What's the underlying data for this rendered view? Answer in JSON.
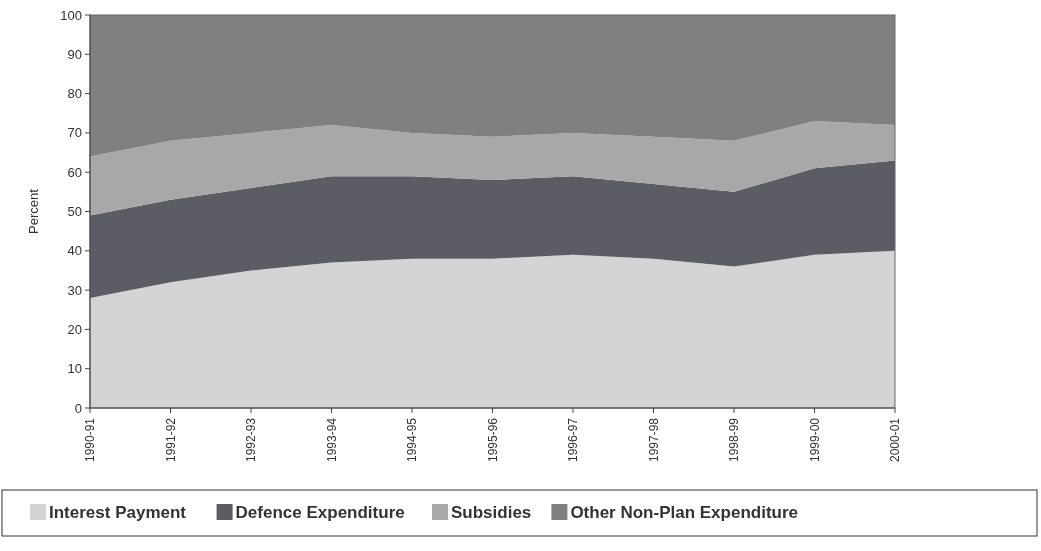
{
  "chart_data": {
    "type": "area",
    "stacked": true,
    "ylabel": "Percent",
    "categories": [
      "1990-91",
      "1991-92",
      "1992-93",
      "1993-94",
      "1994-95",
      "1995-96",
      "1996-97",
      "1997-98",
      "1998-99",
      "1999-00",
      "2000-01"
    ],
    "series": [
      {
        "name": "Interest Payment",
        "color": "#d4d4d4",
        "values": [
          28,
          32,
          35,
          37,
          38,
          38,
          39,
          38,
          36,
          39,
          40
        ]
      },
      {
        "name": "Defence Expenditure",
        "color": "#5c5c64",
        "values": [
          21,
          21,
          21,
          22,
          21,
          20,
          20,
          19,
          19,
          22,
          23
        ]
      },
      {
        "name": "Subsidies",
        "color": "#a8a8a8",
        "values": [
          15,
          15,
          14,
          13,
          11,
          11,
          11,
          12,
          13,
          12,
          9
        ]
      },
      {
        "name": "Other Non-Plan Expenditure",
        "color": "#808080",
        "values": [
          36,
          32,
          30,
          28,
          30,
          31,
          30,
          31,
          32,
          27,
          28
        ]
      }
    ],
    "ylim": [
      0,
      100
    ],
    "yticks": [
      0,
      10,
      20,
      30,
      40,
      50,
      60,
      70,
      80,
      90,
      100
    ],
    "grid": false,
    "legend": "bottom"
  }
}
